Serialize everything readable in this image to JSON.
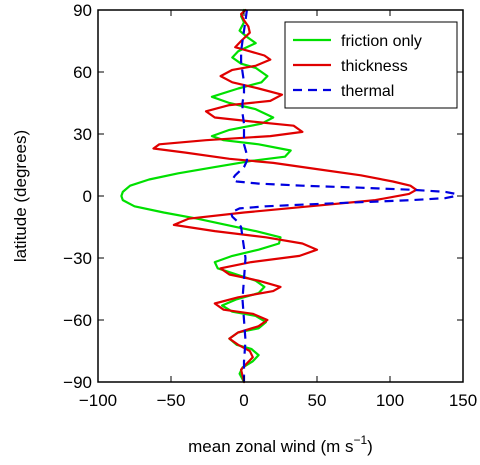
{
  "chart_data": {
    "type": "line",
    "title": "",
    "xlabel": "mean zonal wind (m s",
    "xlabel_superscript": "−1",
    "xlabel_suffix": ")",
    "ylabel": "latitude (degrees)",
    "xlim": [
      -100,
      150
    ],
    "ylim": [
      -90,
      90
    ],
    "xticks": [
      -100,
      -50,
      0,
      50,
      100,
      150
    ],
    "xtick_labels": [
      "−100",
      "−50",
      "0",
      "50",
      "100",
      "150"
    ],
    "yticks": [
      -90,
      -60,
      -30,
      0,
      30,
      60,
      90
    ],
    "ytick_labels": [
      "−90",
      "−60",
      "−30",
      "0",
      "30",
      "60",
      "90"
    ],
    "grid": false,
    "legend_position": "top-right",
    "series": [
      {
        "name": "friction only",
        "color": "#00e000",
        "dash": "solid",
        "points": [
          [
            0,
            90
          ],
          [
            -2,
            87
          ],
          [
            0,
            84
          ],
          [
            -3,
            80
          ],
          [
            2,
            77
          ],
          [
            8,
            74
          ],
          [
            -4,
            70
          ],
          [
            -8,
            67
          ],
          [
            -2,
            64
          ],
          [
            8,
            62
          ],
          [
            16,
            58
          ],
          [
            12,
            55
          ],
          [
            -4,
            52
          ],
          [
            -22,
            48
          ],
          [
            -10,
            45
          ],
          [
            8,
            42
          ],
          [
            20,
            38
          ],
          [
            12,
            35
          ],
          [
            -10,
            32
          ],
          [
            -22,
            29
          ],
          [
            -14,
            27
          ],
          [
            10,
            25
          ],
          [
            32,
            22
          ],
          [
            28,
            19
          ],
          [
            5,
            17
          ],
          [
            -20,
            14
          ],
          [
            -45,
            11
          ],
          [
            -65,
            8
          ],
          [
            -78,
            5
          ],
          [
            -83,
            2
          ],
          [
            -84,
            0
          ],
          [
            -83,
            -2
          ],
          [
            -75,
            -5
          ],
          [
            -55,
            -8
          ],
          [
            -32,
            -11
          ],
          [
            -12,
            -14
          ],
          [
            8,
            -17
          ],
          [
            25,
            -20
          ],
          [
            24,
            -23
          ],
          [
            10,
            -26
          ],
          [
            -8,
            -29
          ],
          [
            -20,
            -32
          ],
          [
            -18,
            -35
          ],
          [
            -5,
            -38
          ],
          [
            8,
            -41
          ],
          [
            14,
            -44
          ],
          [
            10,
            -47
          ],
          [
            -5,
            -50
          ],
          [
            -15,
            -53
          ],
          [
            -8,
            -56
          ],
          [
            8,
            -58
          ],
          [
            15,
            -61
          ],
          [
            10,
            -64
          ],
          [
            -4,
            -66
          ],
          [
            -10,
            -69
          ],
          [
            -5,
            -72
          ],
          [
            5,
            -74
          ],
          [
            10,
            -77
          ],
          [
            6,
            -80
          ],
          [
            -1,
            -83
          ],
          [
            -3,
            -86
          ],
          [
            0,
            -90
          ]
        ]
      },
      {
        "name": "thickness",
        "color": "#e00000",
        "dash": "solid",
        "points": [
          [
            1,
            90
          ],
          [
            -2,
            88
          ],
          [
            0,
            85
          ],
          [
            3,
            82
          ],
          [
            4,
            79
          ],
          [
            -2,
            75
          ],
          [
            -6,
            72
          ],
          [
            4,
            70
          ],
          [
            14,
            68
          ],
          [
            18,
            66
          ],
          [
            8,
            63
          ],
          [
            -8,
            61
          ],
          [
            -16,
            58
          ],
          [
            -8,
            55
          ],
          [
            10,
            52
          ],
          [
            26,
            49
          ],
          [
            18,
            46
          ],
          [
            -10,
            44
          ],
          [
            -26,
            41
          ],
          [
            -20,
            38
          ],
          [
            6,
            36
          ],
          [
            34,
            34
          ],
          [
            40,
            31
          ],
          [
            18,
            29
          ],
          [
            -26,
            27
          ],
          [
            -58,
            25
          ],
          [
            -62,
            23
          ],
          [
            -40,
            21
          ],
          [
            -10,
            18
          ],
          [
            20,
            16
          ],
          [
            50,
            13
          ],
          [
            80,
            10
          ],
          [
            102,
            7
          ],
          [
            114,
            5
          ],
          [
            118,
            3
          ],
          [
            113,
            1
          ],
          [
            90,
            -2
          ],
          [
            45,
            -5
          ],
          [
            0,
            -8
          ],
          [
            -38,
            -11
          ],
          [
            -48,
            -14
          ],
          [
            -20,
            -17
          ],
          [
            15,
            -20
          ],
          [
            40,
            -23
          ],
          [
            50,
            -26
          ],
          [
            38,
            -29
          ],
          [
            5,
            -32
          ],
          [
            -16,
            -35
          ],
          [
            -10,
            -38
          ],
          [
            10,
            -41
          ],
          [
            25,
            -44
          ],
          [
            20,
            -46
          ],
          [
            -4,
            -49
          ],
          [
            -20,
            -52
          ],
          [
            -14,
            -55
          ],
          [
            6,
            -57
          ],
          [
            16,
            -60
          ],
          [
            10,
            -63
          ],
          [
            -4,
            -66
          ],
          [
            -10,
            -69
          ],
          [
            -4,
            -72
          ],
          [
            4,
            -75
          ],
          [
            6,
            -78
          ],
          [
            2,
            -81
          ],
          [
            -2,
            -84
          ],
          [
            -1,
            -87
          ],
          [
            0,
            -90
          ]
        ]
      },
      {
        "name": "thermal",
        "color": "#0000e0",
        "dash": "dashed",
        "points": [
          [
            2,
            90
          ],
          [
            1,
            85
          ],
          [
            0,
            80
          ],
          [
            -1,
            75
          ],
          [
            -2,
            70
          ],
          [
            -2,
            65
          ],
          [
            -1,
            60
          ],
          [
            0,
            55
          ],
          [
            0,
            50
          ],
          [
            -1,
            45
          ],
          [
            -1,
            40
          ],
          [
            0,
            35
          ],
          [
            0,
            30
          ],
          [
            0,
            25
          ],
          [
            2,
            20
          ],
          [
            2,
            17
          ],
          [
            0,
            14
          ],
          [
            -3,
            12
          ],
          [
            -6,
            10
          ],
          [
            -8,
            8
          ],
          [
            -5,
            7
          ],
          [
            10,
            6
          ],
          [
            40,
            5
          ],
          [
            80,
            4
          ],
          [
            115,
            3
          ],
          [
            138,
            2
          ],
          [
            145,
            1
          ],
          [
            145,
            0
          ],
          [
            138,
            -1
          ],
          [
            115,
            -2
          ],
          [
            80,
            -3
          ],
          [
            45,
            -4
          ],
          [
            15,
            -5
          ],
          [
            -3,
            -6
          ],
          [
            -9,
            -8
          ],
          [
            -8,
            -10
          ],
          [
            -5,
            -12
          ],
          [
            -2,
            -15
          ],
          [
            -1,
            -20
          ],
          [
            0,
            -25
          ],
          [
            1,
            -30
          ],
          [
            0,
            -40
          ],
          [
            -1,
            -50
          ],
          [
            0,
            -60
          ],
          [
            1,
            -70
          ],
          [
            0,
            -80
          ],
          [
            0,
            -85
          ],
          [
            0,
            -90
          ]
        ]
      }
    ]
  }
}
